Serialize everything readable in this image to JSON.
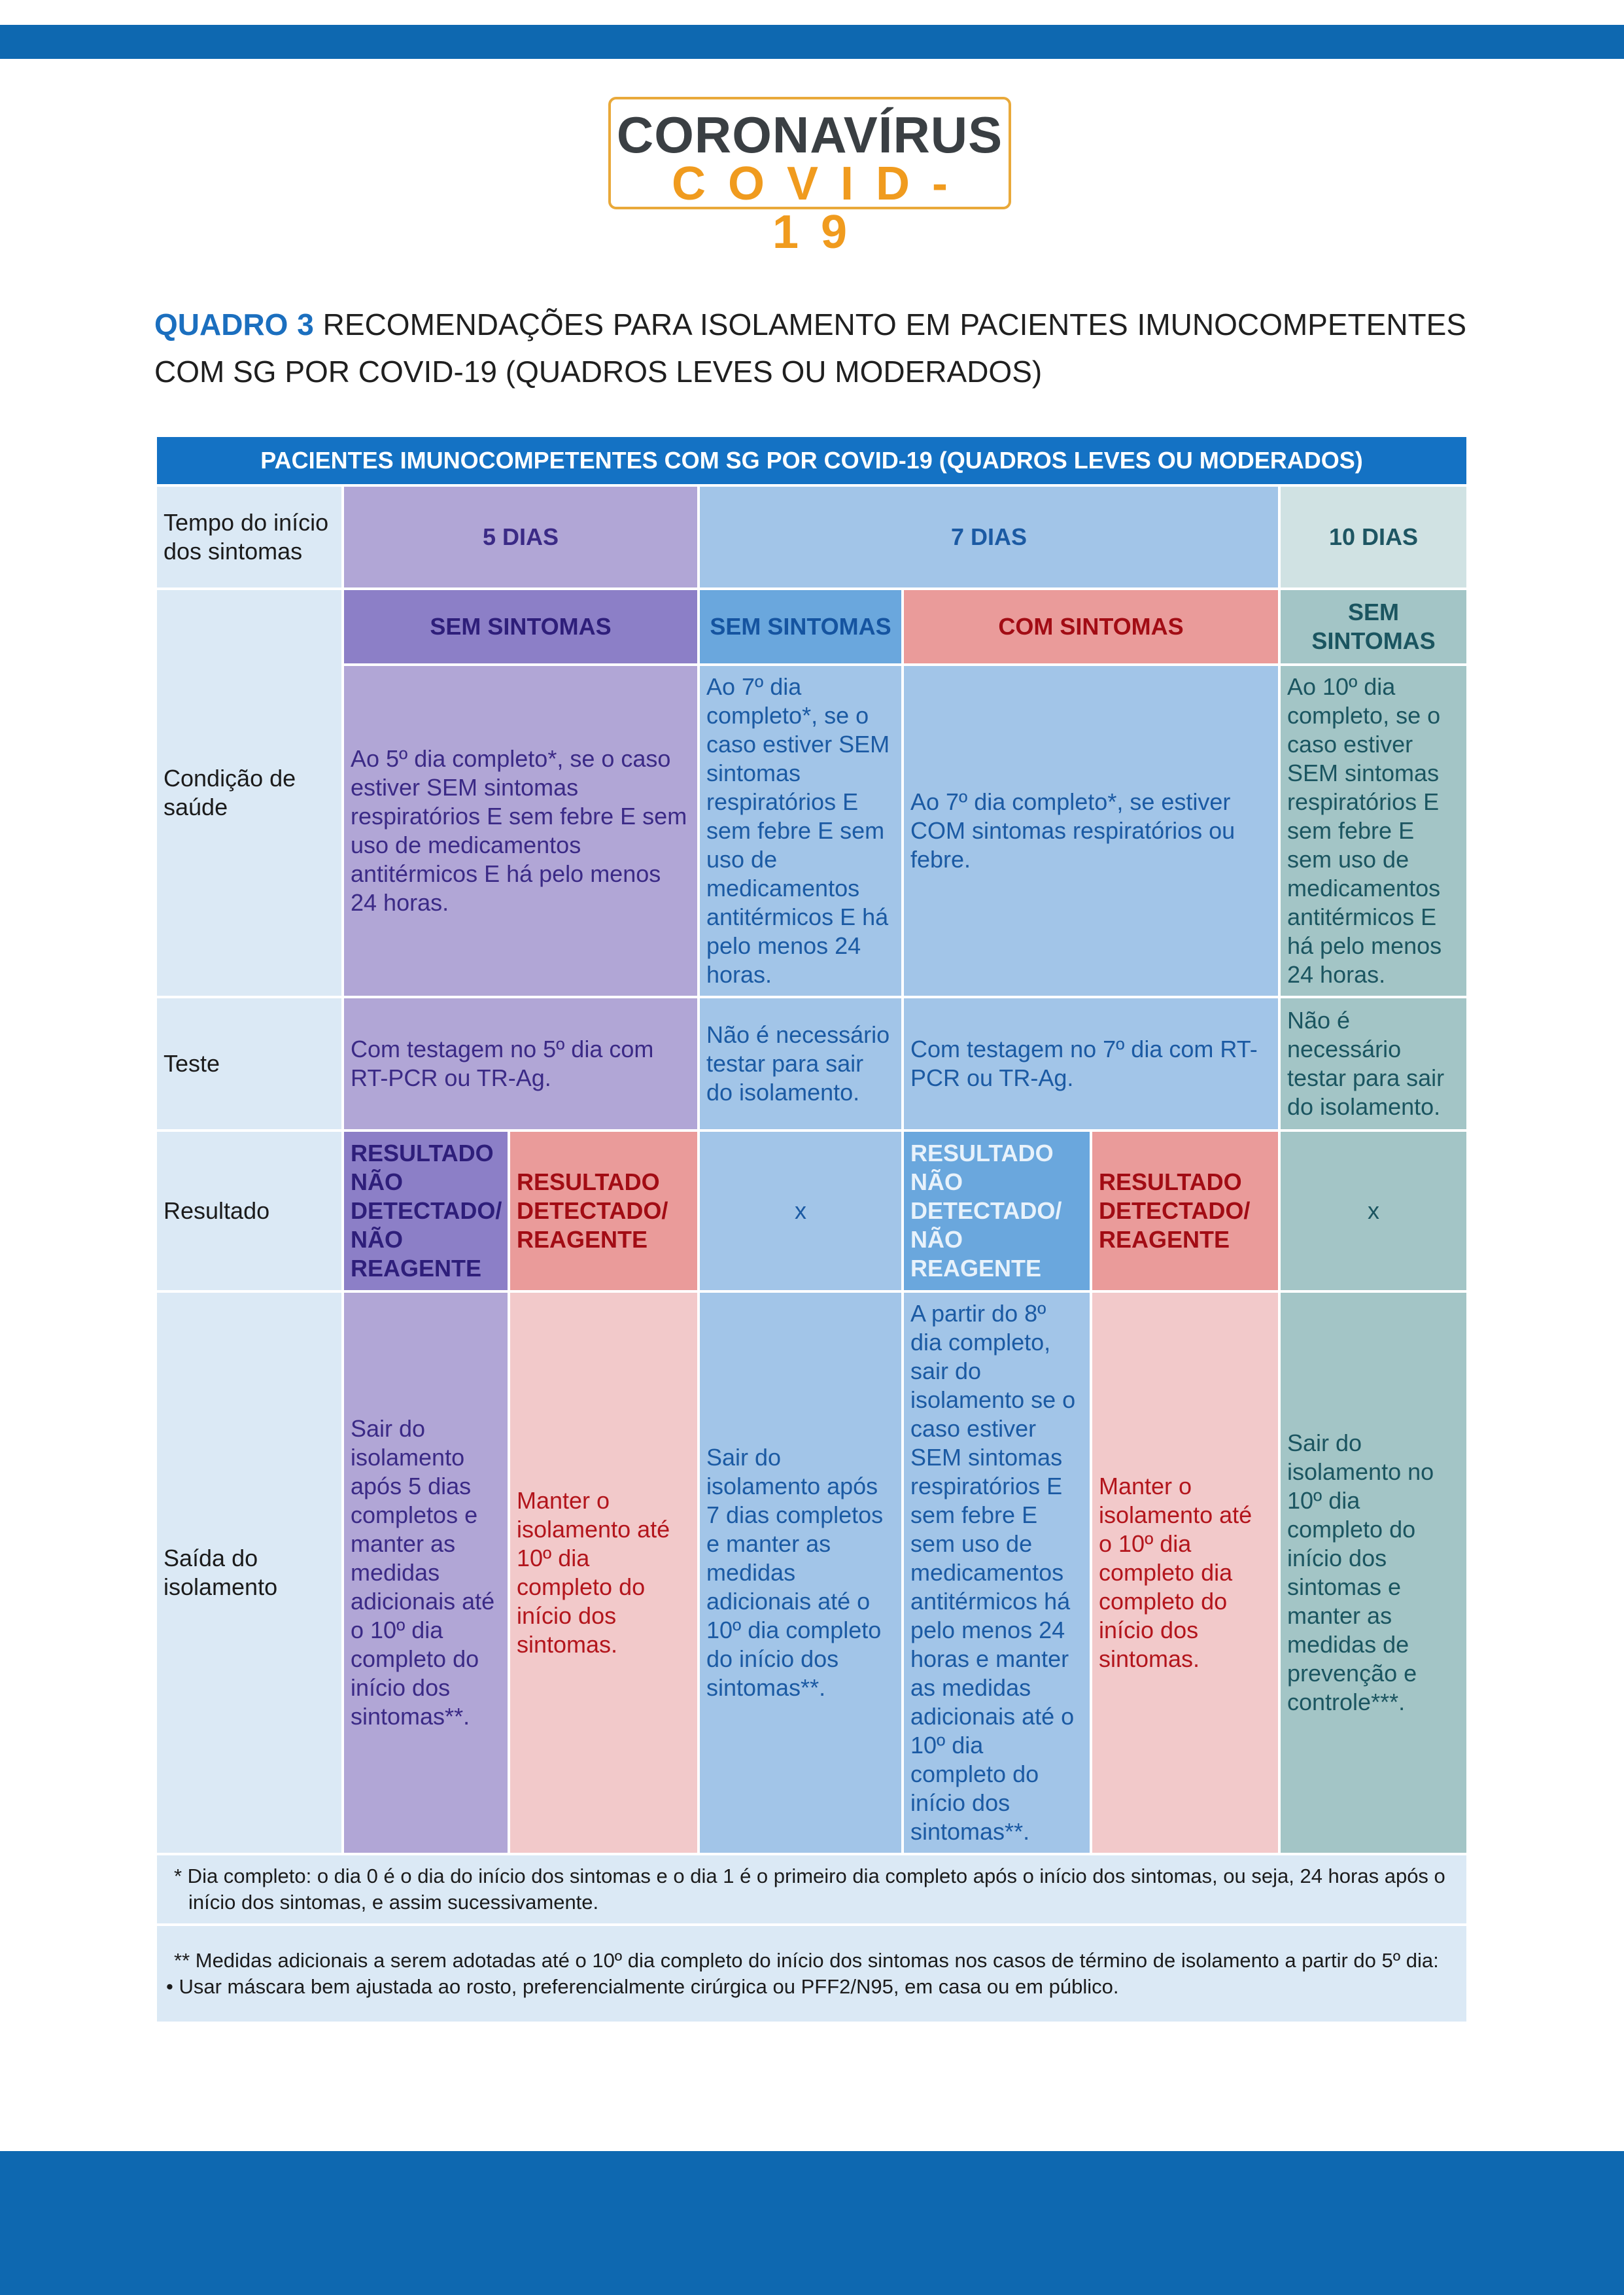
{
  "logo": {
    "line1": "CORONAVÍRUS",
    "line2": "COVID-19"
  },
  "title": {
    "code": "QUADRO 3",
    "text": "RECOMENDAÇÕES PARA ISOLAMENTO EM PACIENTES IMUNOCOMPETENTES COM SG POR COVID-19 (QUADROS LEVES OU MODERADOS)"
  },
  "table": {
    "header": "PACIENTES IMUNOCOMPETENTES COM SG POR COVID-19 (QUADROS LEVES OU MODERADOS)",
    "row_labels": {
      "tempo": "Tempo do início dos sintomas",
      "condicao": "Condição de saúde",
      "teste": "Teste",
      "resultado": "Resultado",
      "saida": "Saída do isolamento"
    },
    "periods": {
      "d5": "5 DIAS",
      "d7": "7 DIAS",
      "d10": "10 DIAS"
    },
    "symptoms": {
      "d5": "SEM SINTOMAS",
      "d7_sem": "SEM SINTOMAS",
      "d7_com": "COM SINTOMAS",
      "d10": "SEM SINTOMAS"
    },
    "condition": {
      "d5": "Ao 5º dia completo*, se o caso estiver SEM sintomas respiratórios E sem febre E sem uso de medicamentos antitérmicos E há pelo menos 24 horas.",
      "d7_sem": "Ao 7º dia completo*, se o caso estiver SEM sintomas respiratórios E sem febre E sem uso de medicamentos antitérmicos E há pelo menos 24 horas.",
      "d7_com": "Ao 7º dia completo*, se estiver COM sintomas respiratórios ou febre.",
      "d10": "Ao 10º dia completo, se o caso estiver SEM sintomas respiratórios E sem febre E sem uso de medicamentos antitérmicos E há pelo menos 24 horas."
    },
    "test": {
      "d5": "Com testagem no 5º dia com RT-PCR ou TR-Ag.",
      "d7_sem": "Não é necessário testar para sair do isolamento.",
      "d7_com": "Com testagem no 7º dia com RT-PCR ou TR-Ag.",
      "d10": "Não é necessário testar para sair do isolamento."
    },
    "result": {
      "d5_neg": "RESULTADO NÃO DETECTADO/ NÃO REAGENTE",
      "d5_pos": "RESULTADO DETECTADO/ REAGENTE",
      "d7_sem": "x",
      "d7_neg": "RESULTADO NÃO DETECTADO/ NÃO REAGENTE",
      "d7_pos": "RESULTADO DETECTADO/ REAGENTE",
      "d10": "x"
    },
    "exit": {
      "d5_neg": "Sair do isolamento após 5 dias completos e manter as medidas adicionais até o 10º dia completo do início dos sintomas**.",
      "d5_pos": "Manter o isolamento até 10º dia completo do início dos sintomas.",
      "d7_sem": "Sair do isolamento após 7 dias completos e manter as medidas adicionais até o 10º dia completo do início dos sintomas**.",
      "d7_neg": "A partir do 8º dia completo, sair do isolamento se o caso estiver SEM sintomas respiratórios E sem febre E sem uso de medicamentos antitérmicos há pelo menos 24 horas e manter as medidas adicionais até o 10º dia completo do início dos sintomas**.",
      "d7_pos": "Manter o isolamento até o 10º dia completo dia completo do início dos sintomas.",
      "d10": "Sair do isolamento no 10º dia completo do início dos sintomas e manter as medidas de prevenção e controle***."
    },
    "notes": {
      "n1": "* Dia completo: o dia 0 é o dia do início dos sintomas e o dia 1 é o primeiro dia completo após o início dos sintomas, ou seja, 24 horas após o início dos sintomas, e assim sucessivamente.",
      "n2": "** Medidas adicionais a serem adotadas até o 10º dia completo do início dos sintomas nos casos de término de isolamento a partir do 5º dia:",
      "n3": "• Usar máscara bem ajustada ao rosto, preferencialmente cirúrgica ou PFF2/N95, em casa ou em público."
    }
  },
  "colors": {
    "brand_blue": "#0e68b0",
    "header_blue": "#1472c4",
    "logo_orange": "#f09b1e",
    "purple": "#b1a6d6",
    "blue": "#a2c5e8",
    "red": "#ea9b9a",
    "teal": "#a3c5c6"
  }
}
